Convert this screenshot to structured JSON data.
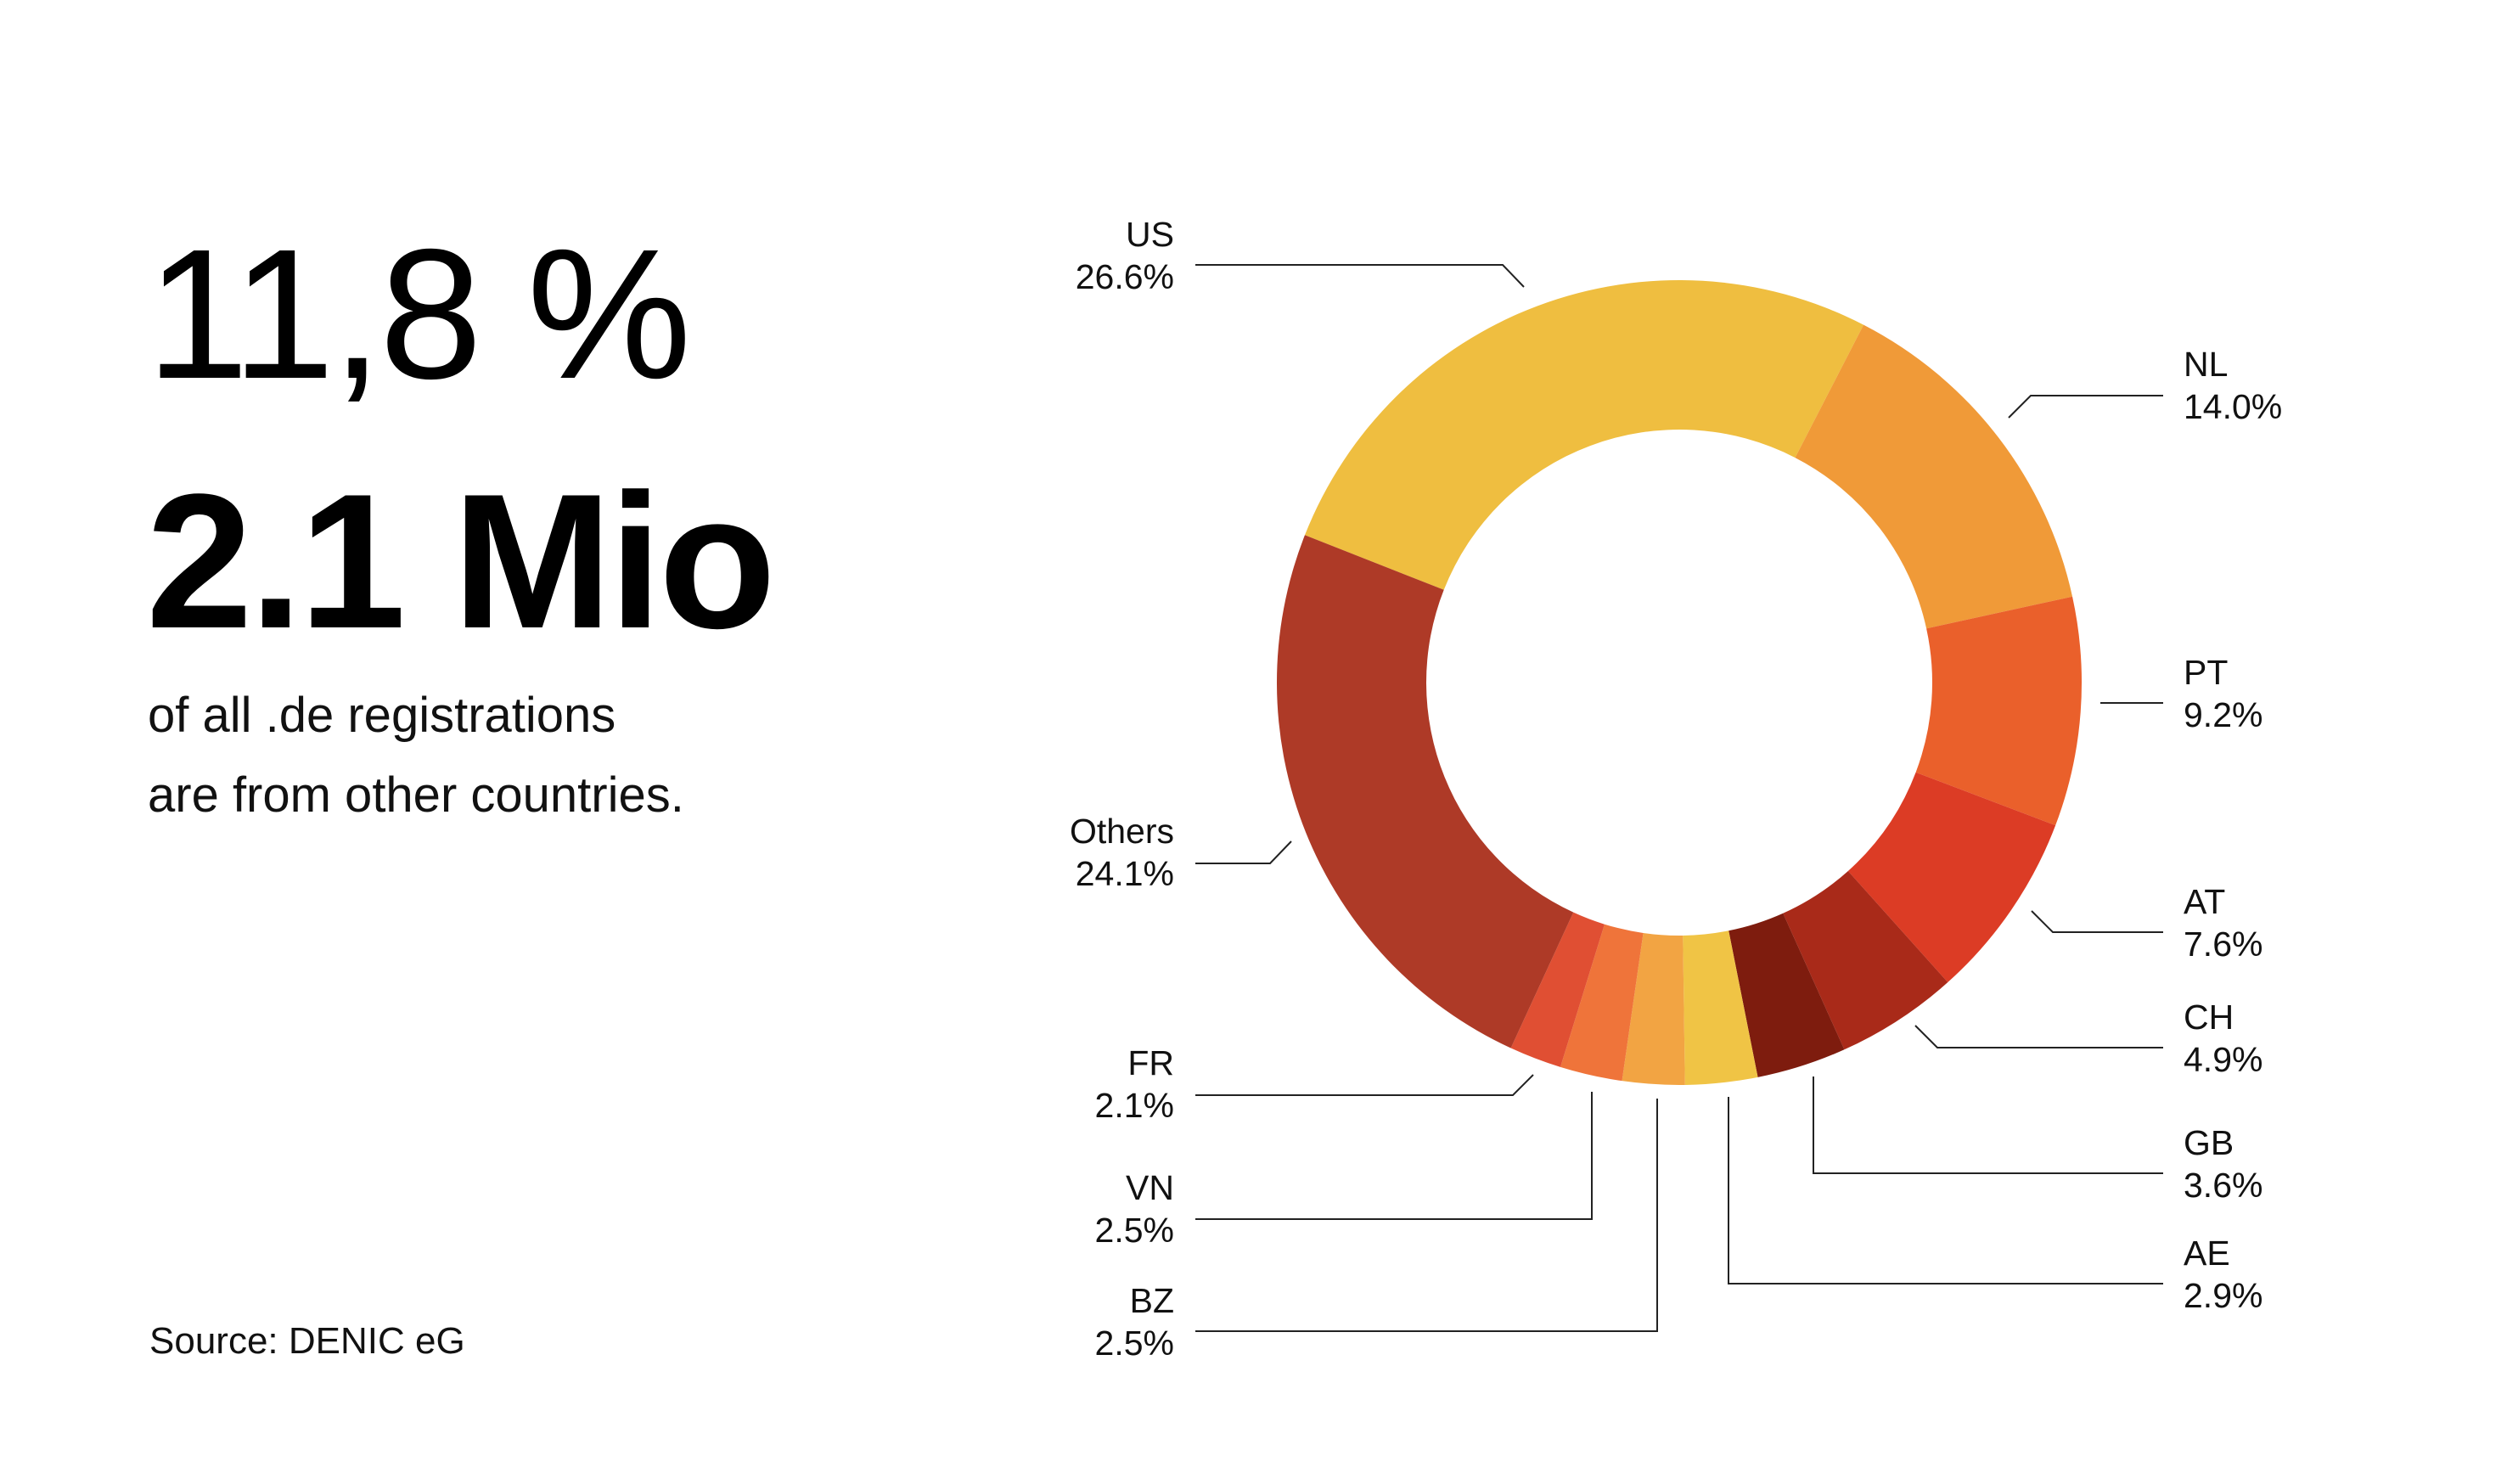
{
  "headline": {
    "percent": "11,8 %",
    "count": "2.1 Mio",
    "description_line1": "of all .de registrations",
    "description_line2": "are from other countries."
  },
  "source": "Source: DENIC eG",
  "chart_data": {
    "type": "pie",
    "variant": "donut",
    "slices": [
      {
        "label": "US",
        "value": 26.6,
        "value_label": "26.6%",
        "color": "#EFBE40"
      },
      {
        "label": "NL",
        "value": 14.0,
        "value_label": "14.0%",
        "color": "#F09A38"
      },
      {
        "label": "PT",
        "value": 9.2,
        "value_label": "9.2%",
        "color": "#EA602B"
      },
      {
        "label": "AT",
        "value": 7.6,
        "value_label": "7.6%",
        "color": "#DC3C25"
      },
      {
        "label": "CH",
        "value": 4.9,
        "value_label": "4.9%",
        "color": "#A92A19"
      },
      {
        "label": "GB",
        "value": 3.6,
        "value_label": "3.6%",
        "color": "#7E1C0E"
      },
      {
        "label": "AE",
        "value": 2.9,
        "value_label": "2.9%",
        "color": "#F0C445"
      },
      {
        "label": "BZ",
        "value": 2.5,
        "value_label": "2.5%",
        "color": "#F2A443"
      },
      {
        "label": "VN",
        "value": 2.5,
        "value_label": "2.5%",
        "color": "#EF743A"
      },
      {
        "label": "FR",
        "value": 2.1,
        "value_label": "2.1%",
        "color": "#E04F33"
      },
      {
        "label": "Others",
        "value": 24.1,
        "value_label": "24.1%",
        "color": "#AE3A27"
      }
    ],
    "legend": "none"
  }
}
